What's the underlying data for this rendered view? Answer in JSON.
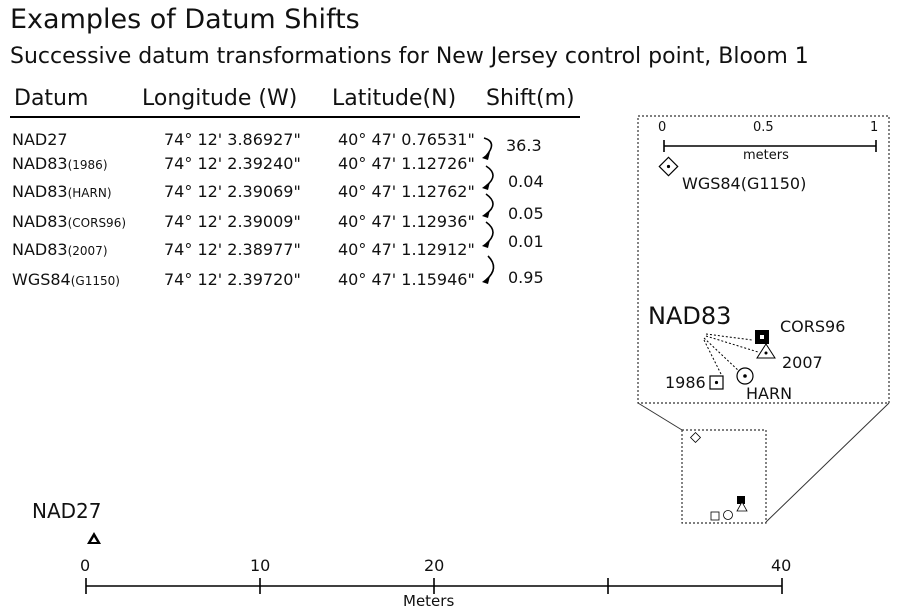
{
  "title": "Examples of Datum Shifts",
  "subtitle": "Successive datum transformations for New Jersey control point, Bloom 1",
  "table": {
    "headers": {
      "datum": "Datum",
      "longitude": "Longitude (W)",
      "latitude": "Latitude(N)",
      "shift": "Shift(m)"
    },
    "rows": [
      {
        "datum": "NAD27",
        "datum_sub": "",
        "lon": "74° 12' 3.86927\"",
        "lat": "40° 47' 0.76531\""
      },
      {
        "datum": "NAD83",
        "datum_sub": "(1986)",
        "lon": "74° 12' 2.39240\"",
        "lat": "40° 47' 1.12726\""
      },
      {
        "datum": "NAD83",
        "datum_sub": "(HARN)",
        "lon": "74° 12' 2.39069\"",
        "lat": "40° 47' 1.12762\""
      },
      {
        "datum": "NAD83",
        "datum_sub": "(CORS96)",
        "lon": "74° 12' 2.39009\"",
        "lat": "40° 47' 1.12936\""
      },
      {
        "datum": "NAD83",
        "datum_sub": "(2007)",
        "lon": "74° 12' 2.38977\"",
        "lat": "40° 47' 1.12912\""
      },
      {
        "datum": "WGS84",
        "datum_sub": "(G1150)",
        "lon": "74° 12' 2.39720\"",
        "lat": "40° 47' 1.15946\""
      }
    ],
    "shifts": [
      "36.3",
      "0.04",
      "0.05",
      "0.01",
      "0.95"
    ]
  },
  "inset": {
    "scale_ticks": [
      "0",
      "0.5",
      "1"
    ],
    "scale_unit": "meters",
    "wgs_label": "WGS84(G1150)",
    "nad83_label": "NAD83",
    "cors_label": "CORS96",
    "y2007_label": "2007",
    "y1986_label": "1986",
    "harn_label": "HARN"
  },
  "main": {
    "nad27_label": "NAD27",
    "axis_ticks": [
      "0",
      "10",
      "20",
      "40"
    ],
    "axis_label": "Meters"
  }
}
